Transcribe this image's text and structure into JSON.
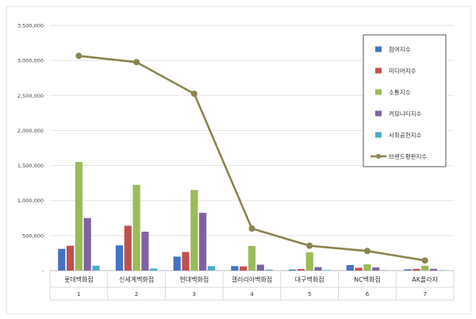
{
  "chart_data": {
    "type": "bar",
    "categories": [
      "롯데백화점",
      "신세계백화점",
      "현대백화점",
      "갤러리아백화점",
      "대구백화점",
      "NC백화점",
      "AK플라자"
    ],
    "category_numbers": [
      "1",
      "2",
      "3",
      "4",
      "5",
      "6",
      "7"
    ],
    "y_ticks": [
      "-",
      "500,000",
      "1,000,000",
      "1,500,000",
      "2,000,000",
      "2,500,000",
      "3,000,000",
      "3,500,000"
    ],
    "ylim": [
      0,
      3500000
    ],
    "grid": true,
    "legend_position": "top-right",
    "series": [
      {
        "name": "참여지수",
        "color": "#4472C4",
        "kind": "bar",
        "values": [
          310000,
          360000,
          200000,
          65000,
          15000,
          80000,
          18000
        ]
      },
      {
        "name": "미디어지수",
        "color": "#C0504D",
        "kind": "bar",
        "values": [
          355000,
          640000,
          265000,
          60000,
          22000,
          40000,
          25000
        ]
      },
      {
        "name": "소통지수",
        "color": "#9BBB59",
        "kind": "bar",
        "values": [
          1550000,
          1225000,
          1150000,
          350000,
          260000,
          90000,
          70000
        ]
      },
      {
        "name": "커뮤니티지수",
        "color": "#8064A2",
        "kind": "bar",
        "values": [
          750000,
          555000,
          825000,
          85000,
          50000,
          45000,
          25000
        ]
      },
      {
        "name": "사회공헌지수",
        "color": "#4BACC6",
        "kind": "bar",
        "values": [
          70000,
          30000,
          65000,
          15000,
          8000,
          5000,
          5000
        ]
      },
      {
        "name": "브랜드평판지수",
        "color": "#8B8450",
        "kind": "line",
        "values": [
          3065000,
          2975000,
          2525000,
          600000,
          355000,
          280000,
          145000
        ]
      }
    ]
  }
}
